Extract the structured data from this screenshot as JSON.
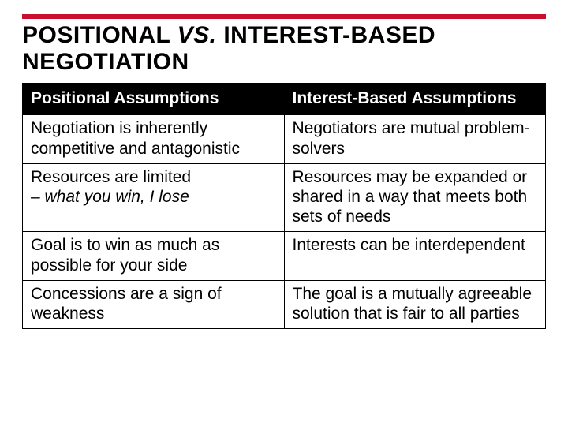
{
  "accent_color": "#c8102e",
  "background_color": "#ffffff",
  "title": {
    "part1": "POSITIONAL ",
    "italic": "VS.",
    "part2": " INTEREST-BASED NEGOTIATION",
    "fontsize": 30,
    "color": "#000000"
  },
  "table": {
    "header_bg": "#000000",
    "header_fg": "#ffffff",
    "border_color": "#000000",
    "cell_fontsize": 21,
    "columns": [
      "Positional Assumptions",
      "Interest-Based Assumptions"
    ],
    "rows": [
      {
        "left": "Negotiation is inherently competitive and antagonistic",
        "right": "Negotiators are mutual problem-solvers"
      },
      {
        "left_plain": "Resources are limited",
        "left_italic": "– what you win, I lose",
        "right": "Resources may be expanded or shared in a way that meets both sets of needs"
      },
      {
        "left": "Goal is to win as much as possible for your side",
        "right": "Interests can be interdependent"
      },
      {
        "left": "Concessions are a sign of weakness",
        "right": "The goal is a mutually agreeable solution that is fair to all parties"
      }
    ]
  }
}
